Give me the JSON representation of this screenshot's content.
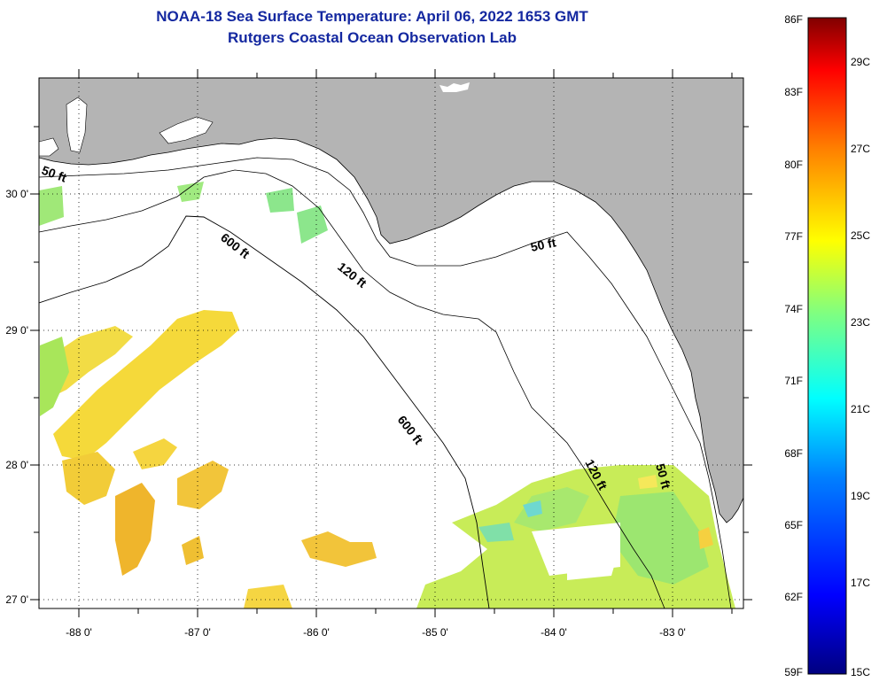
{
  "title_line1": "NOAA-18 Sea Surface Temperature:  April 06, 2022 1653 GMT",
  "title_line2": "Rutgers Coastal Ocean Observation Lab",
  "map": {
    "lon_labels": [
      "-88 0'",
      "-87 0'",
      "-86 0'",
      "-85 0'",
      "-84 0'",
      "-83 0'"
    ],
    "lat_labels": [
      "30 0'",
      "29 0'",
      "28 0'",
      "27 0'"
    ],
    "contour_labels": [
      "50 ft",
      "600 ft",
      "120 ft",
      "50 ft",
      "600 ft",
      "120 ft",
      "50 ft"
    ],
    "land_color": "#b4b4b4",
    "ocean_color": "#ffffff"
  },
  "colorbar": {
    "f_labels": [
      "86F",
      "83F",
      "80F",
      "77F",
      "74F",
      "71F",
      "68F",
      "65F",
      "62F",
      "59F"
    ],
    "c_labels": [
      "29C",
      "27C",
      "25C",
      "23C",
      "21C",
      "19C",
      "17C",
      "15C"
    ],
    "colors": [
      "#800000",
      "#ff0000",
      "#ff8000",
      "#ffff00",
      "#80ff80",
      "#00ffff",
      "#0080ff",
      "#0000ff",
      "#000080"
    ]
  }
}
